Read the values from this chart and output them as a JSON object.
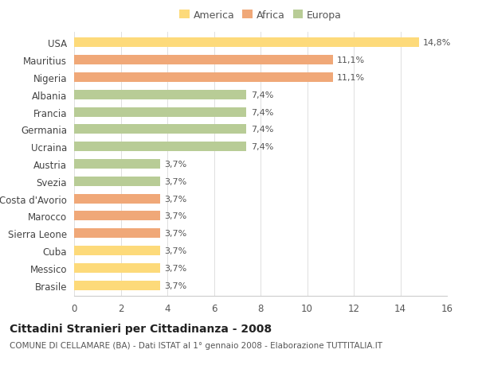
{
  "countries": [
    "USA",
    "Mauritius",
    "Nigeria",
    "Albania",
    "Francia",
    "Germania",
    "Ucraina",
    "Austria",
    "Svezia",
    "Costa d'Avorio",
    "Marocco",
    "Sierra Leone",
    "Cuba",
    "Messico",
    "Brasile"
  ],
  "values": [
    14.8,
    11.1,
    11.1,
    7.4,
    7.4,
    7.4,
    7.4,
    3.7,
    3.7,
    3.7,
    3.7,
    3.7,
    3.7,
    3.7,
    3.7
  ],
  "labels": [
    "14,8%",
    "11,1%",
    "11,1%",
    "7,4%",
    "7,4%",
    "7,4%",
    "7,4%",
    "3,7%",
    "3,7%",
    "3,7%",
    "3,7%",
    "3,7%",
    "3,7%",
    "3,7%",
    "3,7%"
  ],
  "categories": [
    "America",
    "Africa",
    "Europa"
  ],
  "bar_colors": [
    "#FDDA7A",
    "#F0A878",
    "#F0A878",
    "#B8CC96",
    "#B8CC96",
    "#B8CC96",
    "#B8CC96",
    "#B8CC96",
    "#B8CC96",
    "#F0A878",
    "#F0A878",
    "#F0A878",
    "#FDDA7A",
    "#FDDA7A",
    "#FDDA7A"
  ],
  "legend_colors": [
    "#FDDA7A",
    "#F0A878",
    "#B8CC96"
  ],
  "xlim": [
    0,
    16
  ],
  "xticks": [
    0,
    2,
    4,
    6,
    8,
    10,
    12,
    14,
    16
  ],
  "title": "Cittadini Stranieri per Cittadinanza - 2008",
  "subtitle": "COMUNE DI CELLAMARE (BA) - Dati ISTAT al 1° gennaio 2008 - Elaborazione TUTTITALIA.IT",
  "background_color": "#ffffff",
  "grid_color": "#e0e0e0",
  "bar_height": 0.55,
  "label_fontsize": 8,
  "tick_fontsize": 8.5,
  "title_fontsize": 10,
  "subtitle_fontsize": 7.5
}
